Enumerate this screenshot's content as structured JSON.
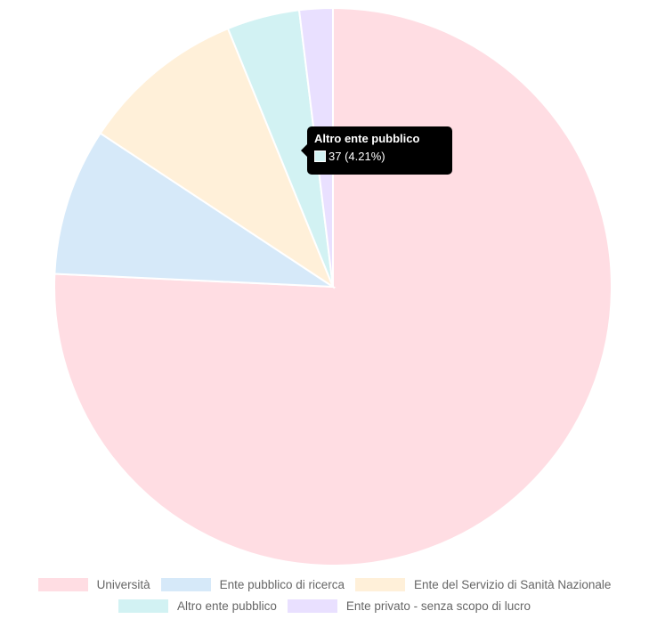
{
  "chart_data": {
    "type": "pie",
    "categories": [
      "Università",
      "Ente pubblico di ricerca",
      "Ente del Servizio di Sanità Nazionale",
      "Altro ente pubblico",
      "Ente privato - senza scopo di lucro"
    ],
    "values": [
      665,
      75,
      84,
      37,
      17
    ],
    "colors": [
      "#ffdde3",
      "#d6e9f9",
      "#fff0d9",
      "#d2f2f3",
      "#e9e0ff"
    ],
    "legend_position": "bottom"
  },
  "tooltip": {
    "title": "Altro ente pubblico",
    "value_text": "37 (4.21%)"
  }
}
